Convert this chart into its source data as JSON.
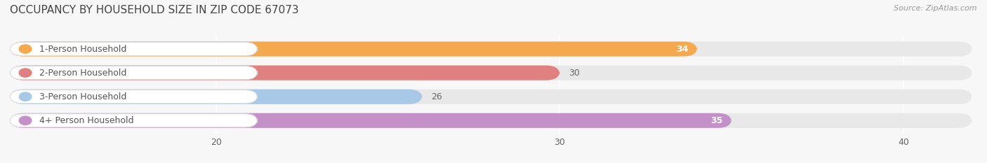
{
  "title": "OCCUPANCY BY HOUSEHOLD SIZE IN ZIP CODE 67073",
  "source": "Source: ZipAtlas.com",
  "categories": [
    "1-Person Household",
    "2-Person Household",
    "3-Person Household",
    "4+ Person Household"
  ],
  "values": [
    34,
    30,
    26,
    35
  ],
  "bar_colors": [
    "#F5A94E",
    "#E08080",
    "#A8C8E8",
    "#C490C8"
  ],
  "value_inside": [
    true,
    false,
    false,
    true
  ],
  "xlim": [
    14,
    42
  ],
  "xticks": [
    20,
    30,
    40
  ],
  "bar_height": 0.62,
  "title_fontsize": 11,
  "label_fontsize": 9,
  "value_fontsize": 9,
  "tick_fontsize": 9,
  "source_fontsize": 8,
  "background_color": "#f7f7f7",
  "bar_background_color": "#e8e8e8",
  "white_color": "#ffffff",
  "label_pill_color": "#ffffff",
  "label_text_color": "#555555",
  "grid_color": "#ffffff",
  "value_outside_color": "#666666",
  "value_inside_color": "#ffffff"
}
